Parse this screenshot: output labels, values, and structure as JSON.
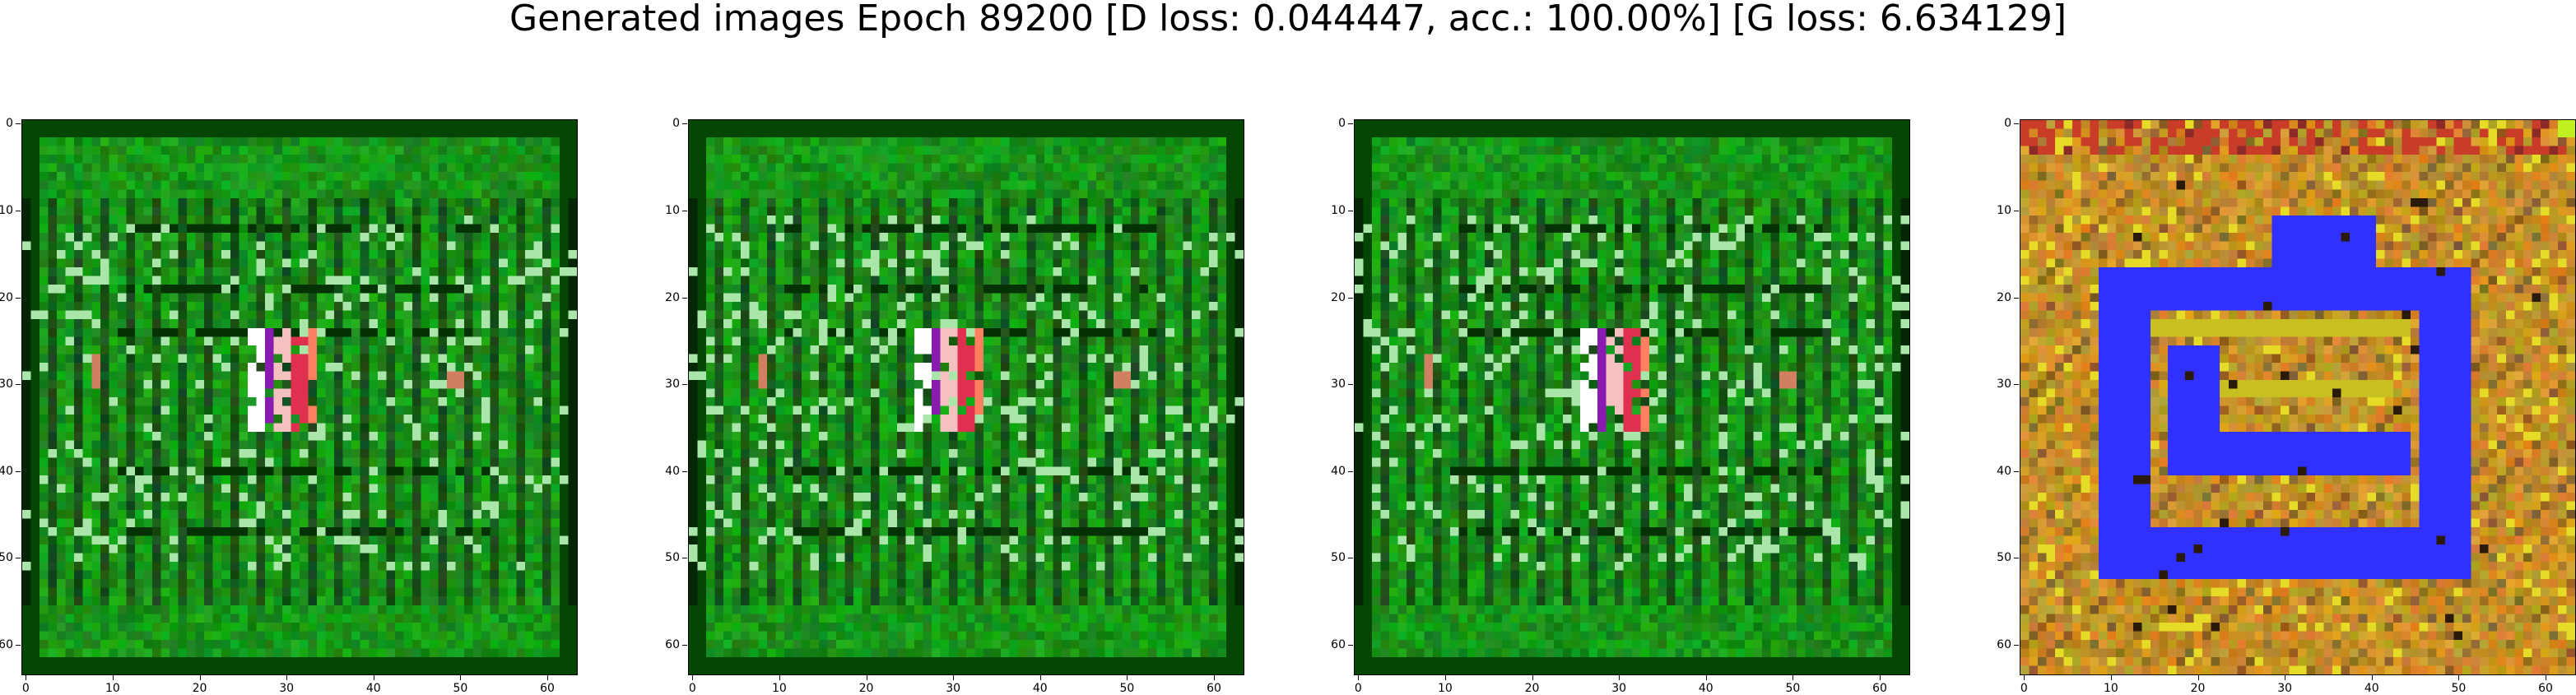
{
  "figure": {
    "title": "Generated images Epoch 89200 [D loss: 0.044447, acc.: 100.00%] [G loss: 6.634129]"
  },
  "axes": {
    "x_ticks": [
      "0",
      "10",
      "20",
      "30",
      "40",
      "50",
      "60"
    ],
    "y_ticks": [
      "0",
      "10",
      "20",
      "30",
      "40",
      "50",
      "60"
    ],
    "range": [
      0,
      63
    ]
  },
  "panels": [
    {
      "palette": "green",
      "base_color": "#1a8f1a",
      "accent_color": "#e0386e"
    },
    {
      "palette": "green",
      "base_color": "#1a8f1a",
      "accent_color": "#e0386e"
    },
    {
      "palette": "green",
      "base_color": "#1a8f1a",
      "accent_color": "#e0386e"
    },
    {
      "palette": "gold",
      "base_color": "#b8860b",
      "accent_color": "#2b2bff"
    }
  ]
}
